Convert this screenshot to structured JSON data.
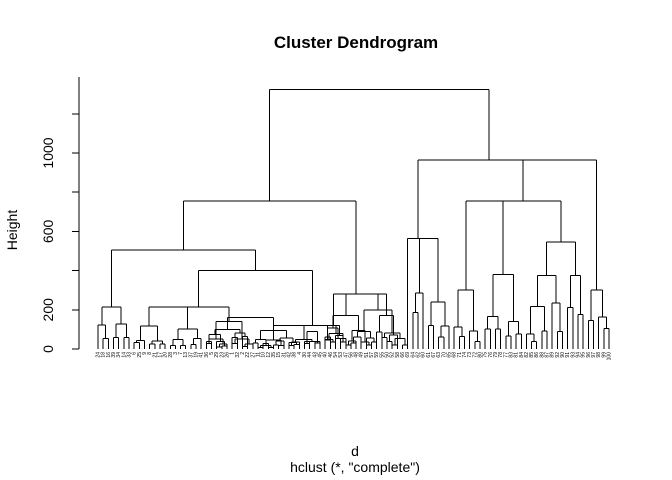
{
  "chart_data": {
    "type": "dendrogram",
    "title": "Cluster Dendrogram",
    "ylabel": "Height",
    "xlabel": "d",
    "sublabel": "hclust (*, \"complete\")",
    "y_ticks": [
      0,
      200,
      600,
      1000
    ],
    "ylim": [
      0,
      1300
    ],
    "leaf_labels": [
      "24",
      "18",
      "16",
      "39",
      "34",
      "14",
      "33",
      "6",
      "25",
      "9",
      "8",
      "21",
      "17",
      "20",
      "28",
      "3",
      "7",
      "13",
      "37",
      "19",
      "41",
      "36",
      "5",
      "29",
      "23",
      "26",
      "1",
      "32",
      "2",
      "22",
      "27",
      "11",
      "10",
      "12",
      "35",
      "15",
      "31",
      "42",
      "38",
      "4",
      "30",
      "44",
      "43",
      "45",
      "40",
      "46",
      "54",
      "53",
      "47",
      "56",
      "48",
      "49",
      "51",
      "57",
      "59",
      "55",
      "50",
      "52",
      "58",
      "66",
      "69",
      "64",
      "62",
      "60",
      "61",
      "67",
      "63",
      "70",
      "65",
      "68",
      "71",
      "74",
      "73",
      "72",
      "80",
      "75",
      "76",
      "79",
      "78",
      "77",
      "83",
      "81",
      "84",
      "82",
      "85",
      "86",
      "88",
      "87",
      "89",
      "92",
      "90",
      "91",
      "93",
      "94",
      "95",
      "96",
      "97",
      "98",
      "99",
      "100"
    ],
    "merges": {
      "root": 1325,
      "left_top": 755,
      "right_top": 965,
      "groupA": 505,
      "groupB": 400,
      "groupC": 565,
      "groupD": 755
    }
  }
}
